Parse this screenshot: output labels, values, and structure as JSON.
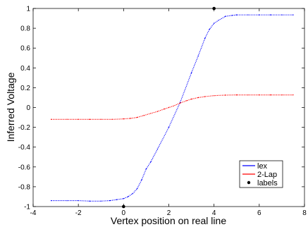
{
  "chart_data": {
    "type": "line",
    "xlabel": "Vertex position on real line",
    "ylabel": "Inferred Voltage",
    "xlim": [
      -4,
      8
    ],
    "ylim": [
      -1,
      1
    ],
    "x_ticks": [
      -4,
      -2,
      0,
      2,
      4,
      6,
      8
    ],
    "y_ticks": [
      -1,
      -0.8,
      -0.6,
      -0.4,
      -0.2,
      0,
      0.2,
      0.4,
      0.6,
      0.8,
      1
    ],
    "x_tick_labels": [
      "-4",
      "-2",
      "0",
      "2",
      "4",
      "6",
      "8"
    ],
    "y_tick_labels": [
      "-1",
      "-0.8",
      "-0.6",
      "-0.4",
      "-0.2",
      "0",
      "0.2",
      "0.4",
      "0.6",
      "0.8",
      "1"
    ],
    "grid": false,
    "legend_position": "bottom-right",
    "series": [
      {
        "name": "lex",
        "color": "#0000ff",
        "marker": "dots",
        "x": [
          -3.2,
          -2.5,
          -2.0,
          -1.5,
          -1.0,
          -0.6,
          -0.3,
          0.0,
          0.2,
          0.4,
          0.6,
          0.8,
          1.0,
          1.2,
          1.5,
          2.0,
          2.5,
          3.0,
          3.3,
          3.6,
          3.8,
          4.0,
          4.2,
          4.5,
          4.8,
          5.0,
          5.5,
          6.0,
          6.5,
          7.0,
          7.5
        ],
        "y": [
          -0.94,
          -0.94,
          -0.94,
          -0.945,
          -0.945,
          -0.94,
          -0.93,
          -0.92,
          -0.9,
          -0.87,
          -0.82,
          -0.73,
          -0.62,
          -0.55,
          -0.42,
          -0.2,
          0.05,
          0.35,
          0.52,
          0.7,
          0.79,
          0.85,
          0.88,
          0.92,
          0.93,
          0.935,
          0.935,
          0.935,
          0.935,
          0.935,
          0.935
        ]
      },
      {
        "name": "2-Lap",
        "color": "#ff0000",
        "marker": "dots",
        "x": [
          -3.2,
          -2.5,
          -2.0,
          -1.5,
          -1.0,
          -0.5,
          0.0,
          0.3,
          0.6,
          0.9,
          1.2,
          1.5,
          1.8,
          2.0,
          2.2,
          2.5,
          2.8,
          3.0,
          3.3,
          3.6,
          4.0,
          4.5,
          5.0,
          5.5,
          6.0,
          6.5,
          7.0,
          7.5
        ],
        "y": [
          -0.12,
          -0.12,
          -0.12,
          -0.12,
          -0.12,
          -0.12,
          -0.115,
          -0.11,
          -0.1,
          -0.08,
          -0.06,
          -0.04,
          -0.015,
          0.0,
          0.015,
          0.045,
          0.07,
          0.085,
          0.1,
          0.11,
          0.12,
          0.125,
          0.127,
          0.127,
          0.127,
          0.127,
          0.127,
          0.127
        ]
      },
      {
        "name": "labels",
        "color": "#000000",
        "marker": "filled-circle",
        "x": [
          0,
          4
        ],
        "y": [
          -1,
          1
        ]
      }
    ]
  }
}
